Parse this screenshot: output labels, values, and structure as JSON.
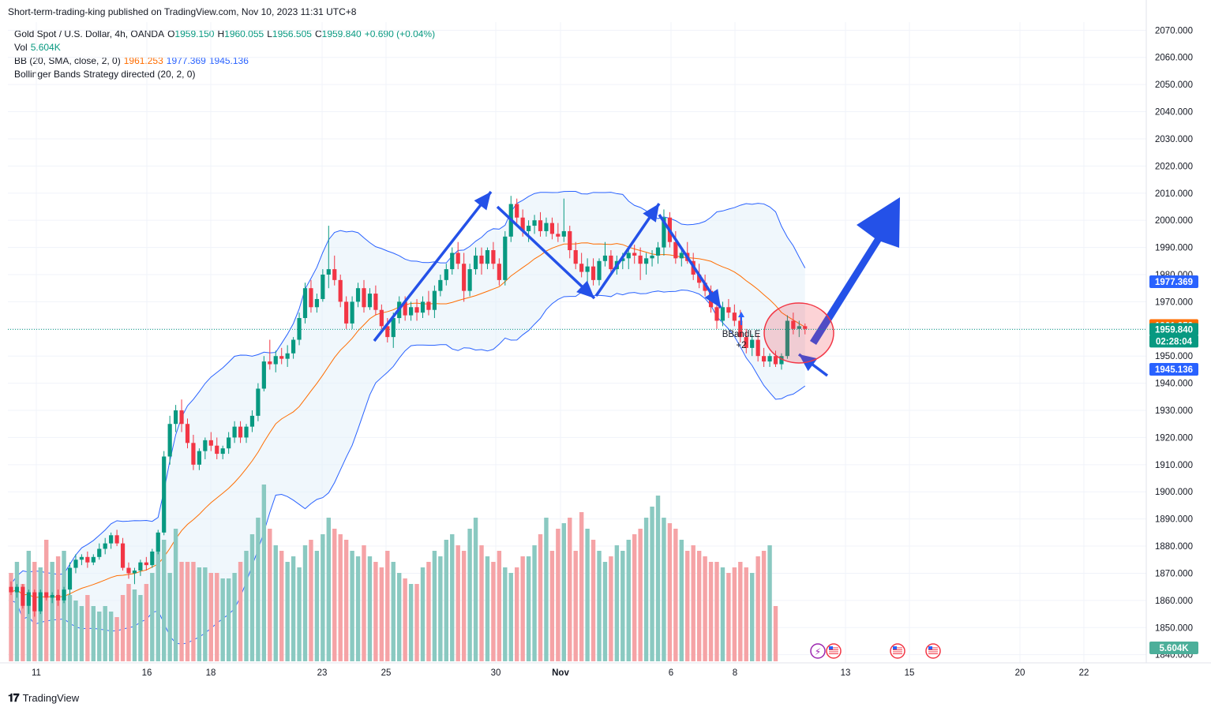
{
  "publisher": "Short-term-trading-king published on TradingView.com, Nov 10, 2023 11:31 UTC+8",
  "legend": {
    "symbol": "Gold Spot / U.S. Dollar, 4h, OANDA",
    "o_label": "O",
    "o": "1959.150",
    "h_label": "H",
    "h": "1960.055",
    "l_label": "L",
    "l": "1956.505",
    "c_label": "C",
    "c": "1959.840",
    "change": "+0.690 (+0.04%)",
    "vol_label": "Vol",
    "vol": "5.604K",
    "bb_label": "BB (20, SMA, close, 2, 0)",
    "bb_mid": "1961.253",
    "bb_upper": "1977.369",
    "bb_lower": "1945.136",
    "strategy": "Bollinger Bands Strategy directed (20, 2, 0)"
  },
  "footer": {
    "logo_text": "TradingView"
  },
  "chart_data": {
    "type": "candlestick",
    "price_axis": {
      "ticks": [
        "2070.000",
        "2060.000",
        "2050.000",
        "2040.000",
        "2030.000",
        "2020.000",
        "2010.000",
        "2000.000",
        "1990.000",
        "1980.000",
        "1970.000",
        "1960.000",
        "1950.000",
        "1940.000",
        "1930.000",
        "1920.000",
        "1910.000",
        "1900.000",
        "1890.000",
        "1880.000",
        "1870.000",
        "1860.000",
        "1850.000",
        "1840.000"
      ],
      "range": [
        1837,
        2073
      ]
    },
    "time_axis": {
      "ticks": [
        "11",
        "16",
        "18",
        "23",
        "25",
        "30",
        "Nov",
        "6",
        "8",
        "13",
        "15",
        "20",
        "22"
      ]
    },
    "price_tags": {
      "bb_upper": "1977.369",
      "bb_mid": "1961.253",
      "last_price": "1959.840",
      "countdown": "02:28:04",
      "bb_lower": "1945.136",
      "volume": "5.604K"
    },
    "strategy_label": "BBandLE",
    "strategy_sub": "+2",
    "colors": {
      "up": "#089981",
      "down": "#f23645",
      "vol_up": "#8ac9c1",
      "vol_down": "#f5a3a6",
      "bb_line": "#2962ff",
      "bb_mid": "#ff6d00",
      "bb_fill": "#e3f0fa",
      "arrows": "#2451e8",
      "highlight": "#f23645",
      "grid": "#f0f3fa"
    },
    "bars": [
      [
        1865,
        1867,
        1862,
        1863
      ],
      [
        1863,
        1866,
        1861,
        1865
      ],
      [
        1865,
        1866,
        1857,
        1858
      ],
      [
        1858,
        1864,
        1855,
        1863
      ],
      [
        1863,
        1864,
        1854,
        1856
      ],
      [
        1856,
        1864,
        1855,
        1863
      ],
      [
        1863,
        1863,
        1860,
        1861
      ],
      [
        1861,
        1863,
        1859,
        1862
      ],
      [
        1862,
        1864,
        1858,
        1860
      ],
      [
        1860,
        1865,
        1859,
        1864
      ],
      [
        1864,
        1874,
        1862,
        1872
      ],
      [
        1872,
        1877,
        1870,
        1875
      ],
      [
        1875,
        1877,
        1873,
        1876
      ],
      [
        1876,
        1878,
        1872,
        1874
      ],
      [
        1874,
        1877,
        1873,
        1876
      ],
      [
        1876,
        1881,
        1875,
        1879
      ],
      [
        1879,
        1883,
        1877,
        1881
      ],
      [
        1881,
        1885,
        1879,
        1884
      ],
      [
        1884,
        1886,
        1880,
        1881
      ],
      [
        1881,
        1883,
        1871,
        1872
      ],
      [
        1872,
        1874,
        1868,
        1870
      ],
      [
        1870,
        1872,
        1866,
        1871
      ],
      [
        1871,
        1875,
        1869,
        1874
      ],
      [
        1874,
        1876,
        1871,
        1873
      ],
      [
        1873,
        1879,
        1872,
        1878
      ],
      [
        1878,
        1886,
        1877,
        1885
      ],
      [
        1885,
        1915,
        1884,
        1913
      ],
      [
        1913,
        1928,
        1910,
        1925
      ],
      [
        1925,
        1932,
        1922,
        1930
      ],
      [
        1930,
        1934,
        1922,
        1925
      ],
      [
        1925,
        1927,
        1916,
        1918
      ],
      [
        1918,
        1921,
        1908,
        1910
      ],
      [
        1910,
        1916,
        1908,
        1915
      ],
      [
        1915,
        1920,
        1912,
        1919
      ],
      [
        1919,
        1922,
        1915,
        1917
      ],
      [
        1917,
        1920,
        1912,
        1914
      ],
      [
        1914,
        1917,
        1912,
        1916
      ],
      [
        1916,
        1922,
        1914,
        1920
      ],
      [
        1920,
        1926,
        1918,
        1924
      ],
      [
        1924,
        1926,
        1918,
        1920
      ],
      [
        1920,
        1925,
        1918,
        1924
      ],
      [
        1924,
        1930,
        1922,
        1928
      ],
      [
        1928,
        1940,
        1926,
        1938
      ],
      [
        1938,
        1950,
        1937,
        1948
      ],
      [
        1948,
        1956,
        1945,
        1947
      ],
      [
        1947,
        1952,
        1944,
        1950
      ],
      [
        1950,
        1953,
        1947,
        1949
      ],
      [
        1949,
        1954,
        1946,
        1951
      ],
      [
        1951,
        1957,
        1949,
        1956
      ],
      [
        1956,
        1966,
        1954,
        1964
      ],
      [
        1964,
        1977,
        1962,
        1975
      ],
      [
        1975,
        1978,
        1966,
        1968
      ],
      [
        1968,
        1973,
        1966,
        1971
      ],
      [
        1971,
        1982,
        1970,
        1980
      ],
      [
        1980,
        1998,
        1975,
        1982
      ],
      [
        1982,
        1987,
        1976,
        1978
      ],
      [
        1978,
        1980,
        1968,
        1970
      ],
      [
        1970,
        1972,
        1960,
        1962
      ],
      [
        1962,
        1972,
        1960,
        1970
      ],
      [
        1970,
        1977,
        1968,
        1975
      ],
      [
        1975,
        1978,
        1966,
        1968
      ],
      [
        1968,
        1975,
        1967,
        1973
      ],
      [
        1973,
        1976,
        1965,
        1967
      ],
      [
        1967,
        1969,
        1959,
        1961
      ],
      [
        1961,
        1964,
        1955,
        1957
      ],
      [
        1957,
        1966,
        1953,
        1964
      ],
      [
        1964,
        1972,
        1962,
        1970
      ],
      [
        1970,
        1972,
        1963,
        1965
      ],
      [
        1965,
        1970,
        1963,
        1968
      ],
      [
        1968,
        1971,
        1963,
        1966
      ],
      [
        1966,
        1972,
        1964,
        1970
      ],
      [
        1970,
        1974,
        1965,
        1967
      ],
      [
        1967,
        1976,
        1964,
        1974
      ],
      [
        1974,
        1980,
        1972,
        1978
      ],
      [
        1978,
        1984,
        1976,
        1982
      ],
      [
        1982,
        1990,
        1980,
        1988
      ],
      [
        1988,
        1992,
        1982,
        1984
      ],
      [
        1984,
        1988,
        1970,
        1974
      ],
      [
        1974,
        1984,
        1972,
        1982
      ],
      [
        1982,
        1990,
        1980,
        1987
      ],
      [
        1987,
        1990,
        1980,
        1984
      ],
      [
        1984,
        1990,
        1982,
        1989
      ],
      [
        1989,
        1992,
        1982,
        1984
      ],
      [
        1984,
        1986,
        1976,
        1978
      ],
      [
        1978,
        1996,
        1976,
        1994
      ],
      [
        1994,
        2009,
        1992,
        2006
      ],
      [
        2006,
        2008,
        1999,
        2001
      ],
      [
        2001,
        2004,
        1994,
        1996
      ],
      [
        1996,
        2000,
        1992,
        1998
      ],
      [
        1998,
        2002,
        1995,
        2000
      ],
      [
        2000,
        2003,
        1994,
        1996
      ],
      [
        1996,
        2001,
        1994,
        1999
      ],
      [
        1999,
        2001,
        1993,
        1995
      ],
      [
        1995,
        1999,
        1992,
        1994
      ],
      [
        1994,
        2008,
        1992,
        1996
      ],
      [
        1996,
        1998,
        1986,
        1989
      ],
      [
        1989,
        1992,
        1982,
        1984
      ],
      [
        1984,
        1988,
        1979,
        1981
      ],
      [
        1981,
        1986,
        1977,
        1983
      ],
      [
        1983,
        1986,
        1976,
        1978
      ],
      [
        1978,
        1986,
        1976,
        1985
      ],
      [
        1985,
        1992,
        1983,
        1987
      ],
      [
        1987,
        1989,
        1980,
        1982
      ],
      [
        1982,
        1987,
        1980,
        1985
      ],
      [
        1985,
        1988,
        1982,
        1986
      ],
      [
        1986,
        1990,
        1982,
        1988
      ],
      [
        1988,
        1991,
        1984,
        1987
      ],
      [
        1987,
        1990,
        1978,
        1984
      ],
      [
        1984,
        1988,
        1980,
        1986
      ],
      [
        1986,
        1989,
        1983,
        1987
      ],
      [
        1987,
        1992,
        1984,
        1990
      ],
      [
        1990,
        2004,
        1987,
        2001
      ],
      [
        2001,
        2003,
        1990,
        1992
      ],
      [
        1992,
        1996,
        1984,
        1986
      ],
      [
        1986,
        1990,
        1983,
        1988
      ],
      [
        1988,
        1992,
        1984,
        1985
      ],
      [
        1985,
        1988,
        1978,
        1980
      ],
      [
        1980,
        1984,
        1975,
        1977
      ],
      [
        1977,
        1980,
        1972,
        1974
      ],
      [
        1974,
        1976,
        1966,
        1968
      ],
      [
        1968,
        1970,
        1960,
        1963
      ],
      [
        1963,
        1970,
        1961,
        1968
      ],
      [
        1968,
        1971,
        1964,
        1966
      ],
      [
        1966,
        1969,
        1961,
        1963
      ],
      [
        1963,
        1967,
        1955,
        1957
      ],
      [
        1957,
        1960,
        1951,
        1953
      ],
      [
        1953,
        1958,
        1950,
        1956
      ],
      [
        1956,
        1958,
        1948,
        1950
      ],
      [
        1950,
        1953,
        1946,
        1948
      ],
      [
        1948,
        1951,
        1946,
        1950
      ],
      [
        1950,
        1952,
        1946,
        1947
      ],
      [
        1947,
        1951,
        1945,
        1950
      ],
      [
        1950,
        1965,
        1949,
        1963
      ],
      [
        1963,
        1966,
        1958,
        1960
      ],
      [
        1960,
        1963,
        1957,
        1961
      ],
      [
        1961,
        1962,
        1958,
        1960
      ]
    ],
    "volumes": [
      0.8,
      0.9,
      0.7,
      1.0,
      0.9,
      0.85,
      1.1,
      0.9,
      0.95,
      1.0,
      0.6,
      0.55,
      0.5,
      0.6,
      0.5,
      0.45,
      0.5,
      0.45,
      0.4,
      0.6,
      0.7,
      0.65,
      0.6,
      0.7,
      0.8,
      1.0,
      1.1,
      0.8,
      1.2,
      0.9,
      0.9,
      0.9,
      0.85,
      0.85,
      0.8,
      0.8,
      0.75,
      0.75,
      0.8,
      0.9,
      1.0,
      1.15,
      1.3,
      1.6,
      1.2,
      1.05,
      1.0,
      0.9,
      0.95,
      0.85,
      1.05,
      1.1,
      1.0,
      1.15,
      1.3,
      1.2,
      1.15,
      1.1,
      1.0,
      0.95,
      1.05,
      0.95,
      0.9,
      0.85,
      1.0,
      0.9,
      0.8,
      0.75,
      0.7,
      0.7,
      0.85,
      0.9,
      1.0,
      0.95,
      1.1,
      1.15,
      1.05,
      1.0,
      1.2,
      1.3,
      1.05,
      0.95,
      0.9,
      1.0,
      0.85,
      0.8,
      0.85,
      0.95,
      0.95,
      1.05,
      1.15,
      1.3,
      1.0,
      1.2,
      1.25,
      1.3,
      1.0,
      1.35,
      1.2,
      1.1,
      1.0,
      0.9,
      0.95,
      1.05,
      1.0,
      1.1,
      1.15,
      1.2,
      1.3,
      1.4,
      1.5,
      1.3,
      1.25,
      1.2,
      1.1,
      1.0,
      1.05,
      1.0,
      0.95,
      0.9,
      0.9,
      0.85,
      0.8,
      0.85,
      0.9,
      0.85,
      0.8,
      0.95,
      1.0,
      1.05,
      0.5
    ]
  }
}
